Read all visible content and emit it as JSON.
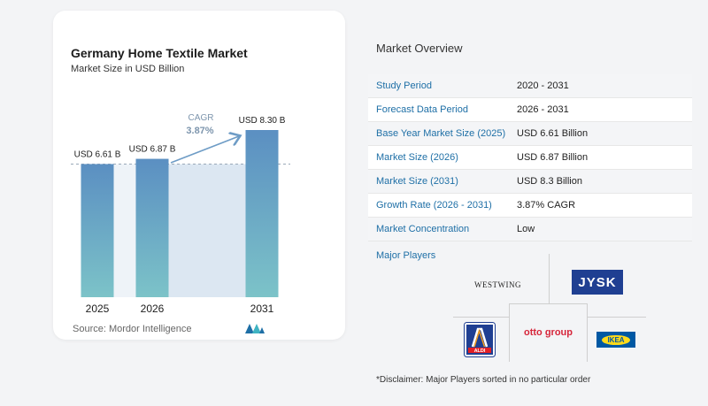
{
  "chart_data": {
    "type": "bar",
    "title": "Germany Home Textile Market",
    "subtitle": "Market Size in USD Billion",
    "categories": [
      "2025",
      "2026",
      "2031"
    ],
    "values": [
      6.61,
      6.87,
      8.3
    ],
    "data_labels": [
      "USD 6.61 B",
      "USD 6.87 B",
      "USD 8.30 B"
    ],
    "cagr_label": "CAGR",
    "cagr_value": "3.87%",
    "ylim": [
      0,
      8.3
    ],
    "colors": {
      "bar_top": "#5b8fc2",
      "bar_bottom": "#7cc3c8",
      "band": "#dce7f2",
      "arrow": "#6e9cc6",
      "cagr_text": "#7d95ad"
    }
  },
  "source": "Source:  Mordor Intelligence",
  "overview": {
    "title": "Market Overview",
    "rows": [
      {
        "label": "Study Period",
        "value": "2020 - 2031"
      },
      {
        "label": "Forecast Data Period",
        "value": "2026 - 2031"
      },
      {
        "label": "Base Year Market Size (2025)",
        "value": "USD 6.61 Billion"
      },
      {
        "label": "Market Size (2026)",
        "value": "USD 6.87 Billion"
      },
      {
        "label": "Market Size (2031)",
        "value": "USD 8.3 Billion"
      },
      {
        "label": "Growth Rate (2026 - 2031)",
        "value": "3.87% CAGR"
      },
      {
        "label": "Market Concentration",
        "value": "Low"
      }
    ]
  },
  "players": {
    "title": "Major Players",
    "westwing": "WESTWING",
    "jysk": "JYSK",
    "otto": "otto group",
    "aldi": "ALDI",
    "ikea": "IKEA"
  },
  "disclaimer": "*Disclaimer: Major Players sorted in no particular order"
}
